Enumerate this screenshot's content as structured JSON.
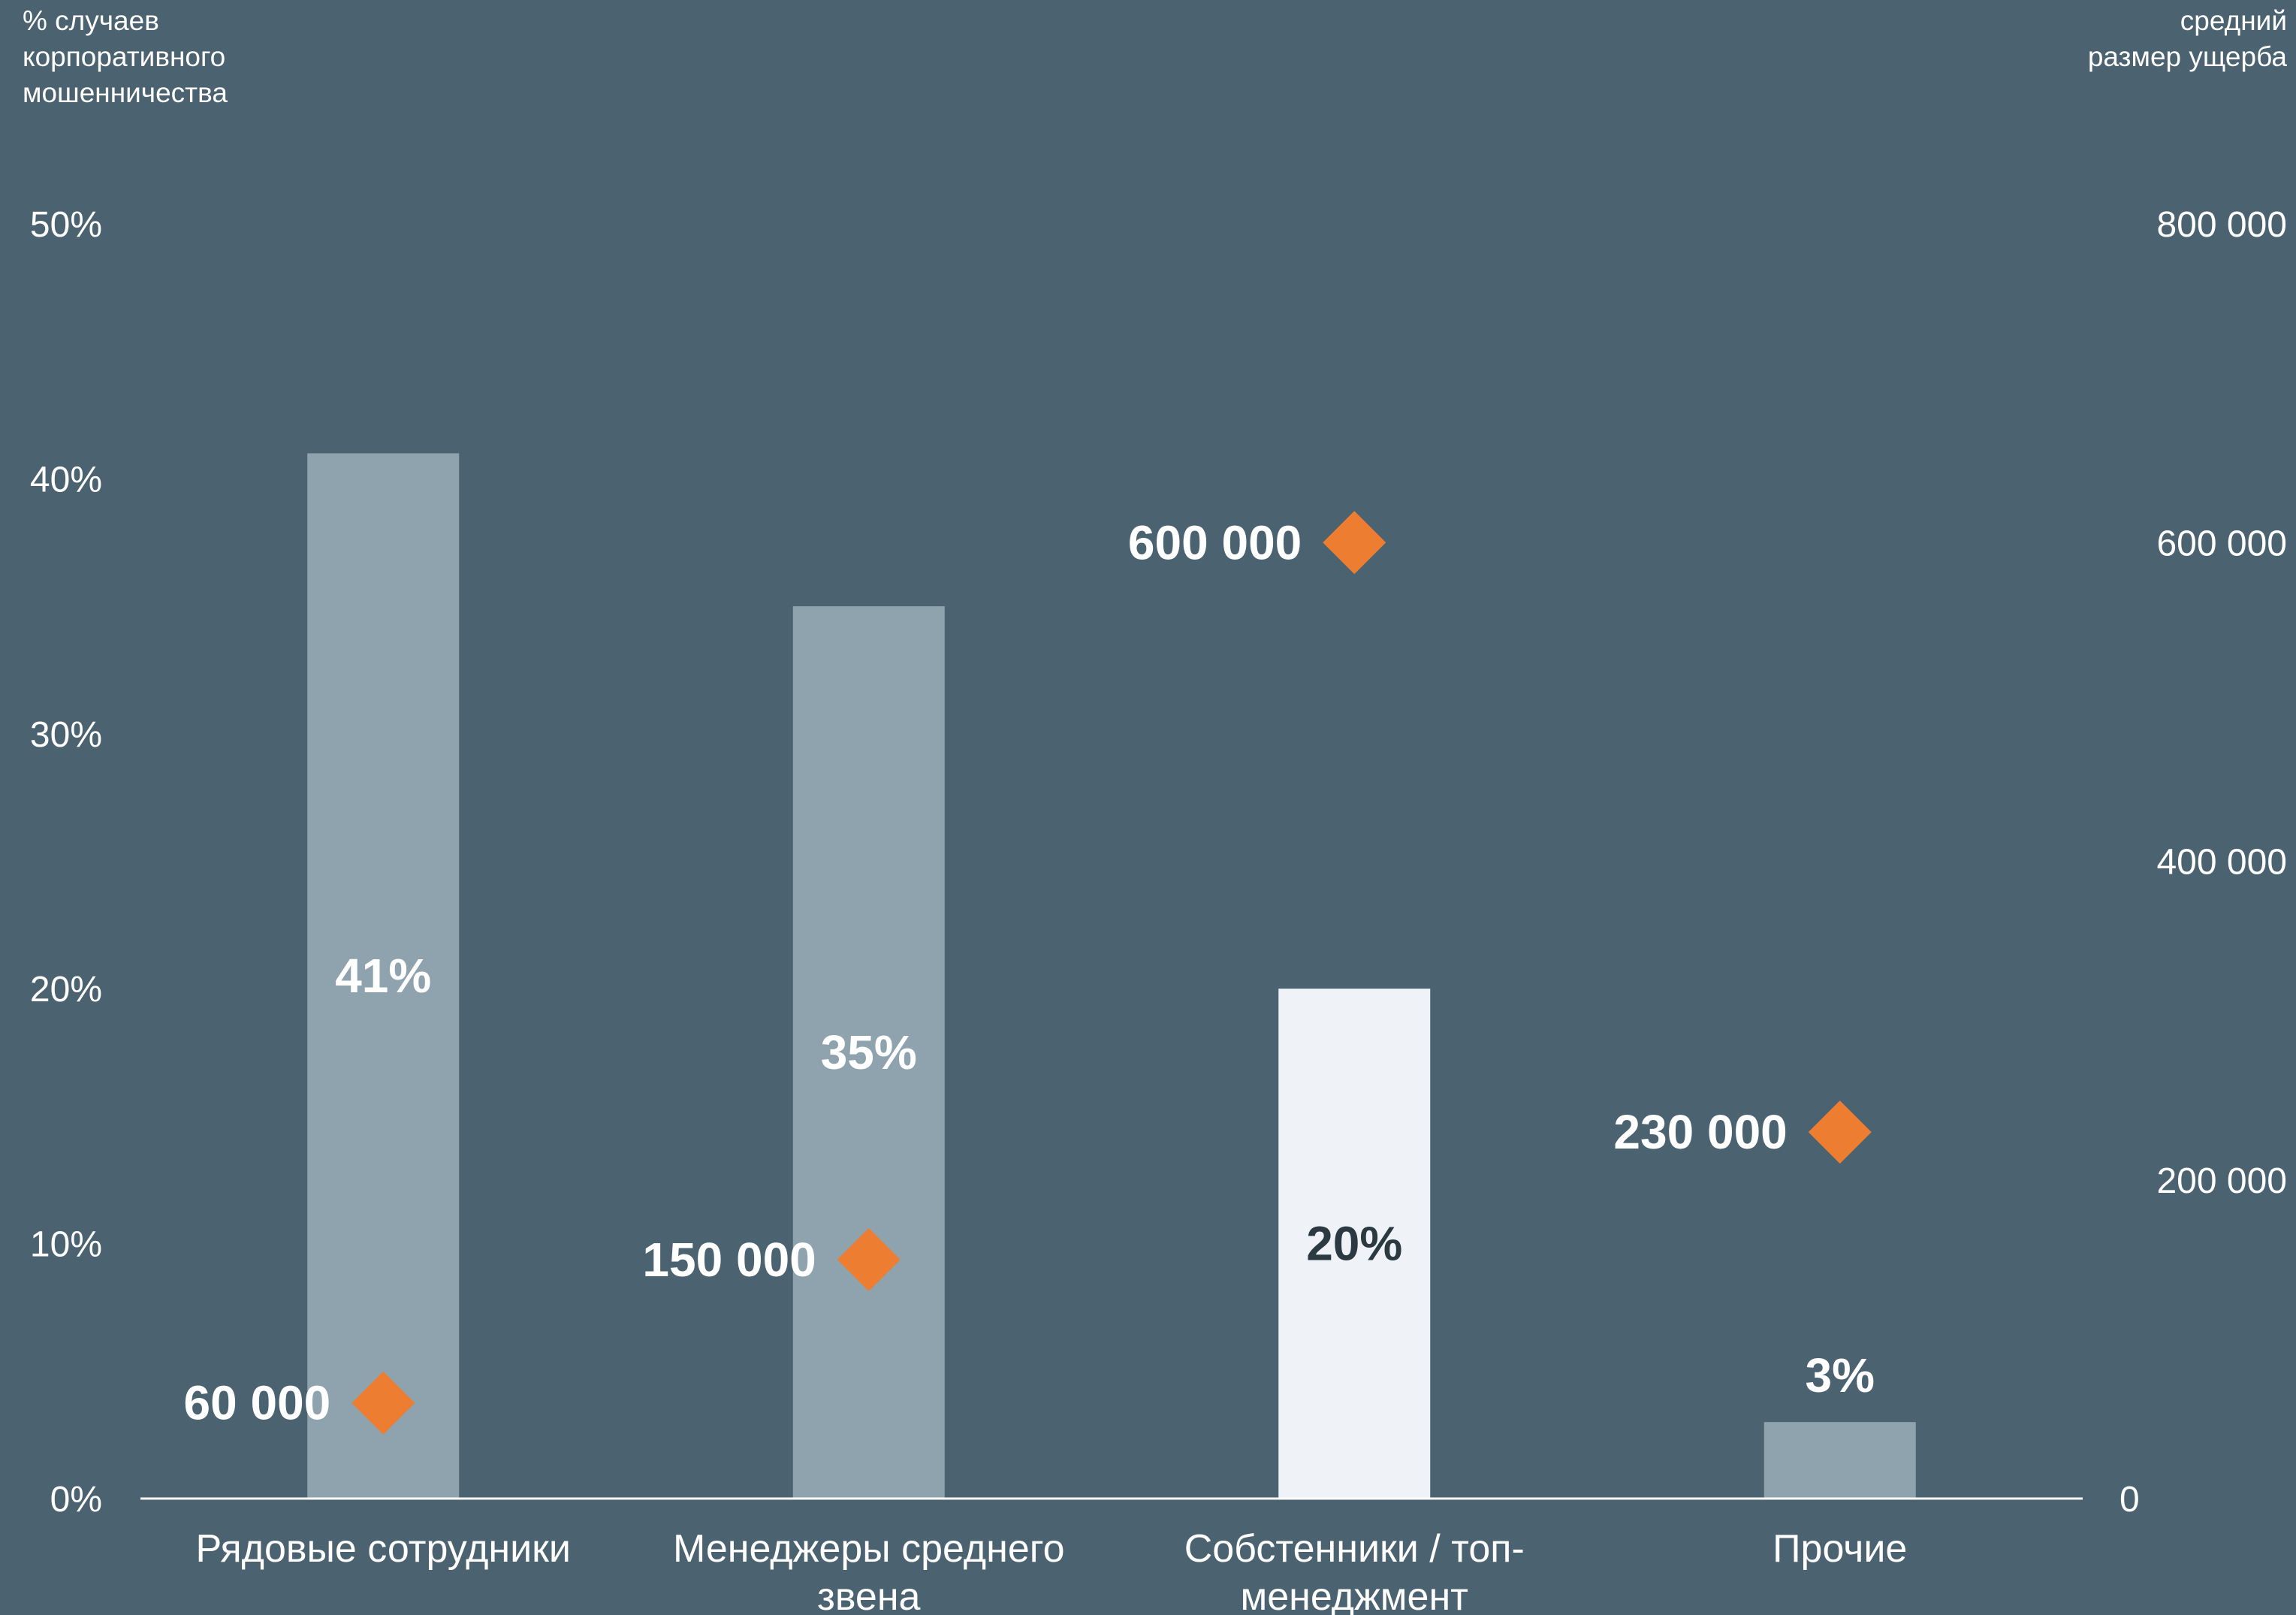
{
  "chart_data": {
    "type": "bar",
    "left_axis": {
      "title_lines": [
        "% случаев",
        "корпоративного",
        "мошенничества"
      ],
      "ticks": [
        "0%",
        "10%",
        "20%",
        "30%",
        "40%",
        "50%"
      ],
      "ylim": [
        0,
        50
      ]
    },
    "right_axis": {
      "title_lines": [
        "средний",
        "размер ущерба"
      ],
      "ticks": [
        "0",
        "200 000",
        "400 000",
        "600 000",
        "800 000"
      ],
      "ylim": [
        0,
        800000
      ]
    },
    "categories": [
      [
        "Рядовые сотрудники"
      ],
      [
        "Менеджеры среднего",
        "звена"
      ],
      [
        "Собстенники / топ-",
        "менеджмент"
      ],
      [
        "Прочие"
      ]
    ],
    "series": [
      {
        "values": [
          41,
          35,
          20,
          3
        ],
        "labels": [
          "41%",
          "35%",
          "20%",
          "3%"
        ],
        "axis": "left",
        "marker": "bar"
      },
      {
        "values": [
          60000,
          150000,
          600000,
          230000
        ],
        "labels": [
          "60 000",
          "150 000",
          "600 000",
          "230 000"
        ],
        "axis": "right",
        "marker": "diamond"
      }
    ],
    "colors": {
      "background": "#4b6271",
      "bar": "#8ea3ae",
      "bar_highlight": "#eff2f6",
      "marker": "#ed7d31",
      "text": "#ffffff",
      "text_on_highlight": "#2b3a42",
      "baseline": "#ffffff"
    },
    "highlight_index": 2,
    "grid": false
  }
}
